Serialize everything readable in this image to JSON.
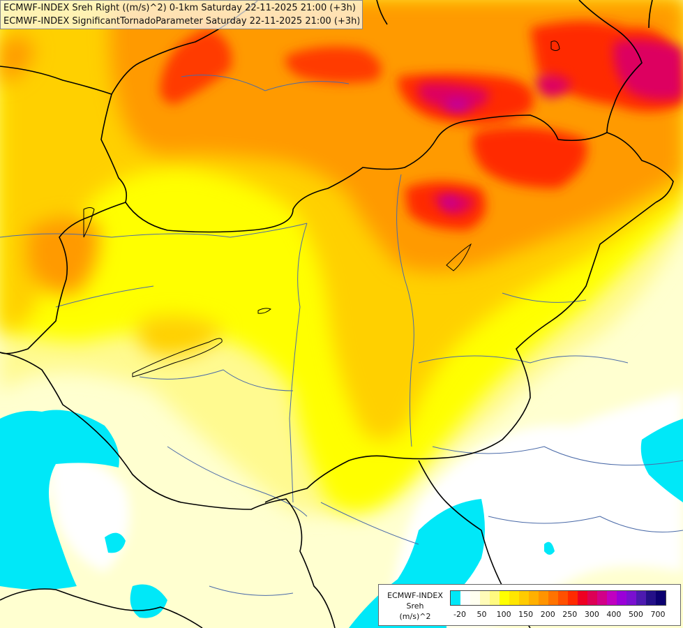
{
  "title": {
    "line1": "ECMWF-INDEX Sreh Right ((m/s)^2) 0-1km Saturday 22-11-2025 21:00 (+3h)",
    "line2": "ECMWF-INDEX SignificantTornadoParameter Saturday 22-11-2025 21:00 (+3h)"
  },
  "legend": {
    "line1": "ECMWF-INDEX",
    "line2": "Sreh",
    "line3": "(m/s)^2",
    "colors": [
      "#00e8f8",
      "#ffffff",
      "#fffff0",
      "#fffbb8",
      "#fffa80",
      "#ffff00",
      "#ffe600",
      "#ffcb00",
      "#ffb000",
      "#ff9400",
      "#ff7300",
      "#ff5000",
      "#ff2a00",
      "#ee0022",
      "#dd0055",
      "#d20088",
      "#c000c0",
      "#9a00d8",
      "#7a10d0",
      "#4d1ab0",
      "#241088",
      "#0b0070"
    ],
    "ticks": [
      "-20",
      "50",
      "100",
      "150",
      "200",
      "250",
      "300",
      "400",
      "500",
      "700"
    ]
  },
  "palette": {
    "cyan": "#00e8f8",
    "pale": "#ffffd0",
    "yellow": "#ffff00",
    "gold": "#ffd000",
    "orange": "#ff9a00",
    "red": "#ff2a00",
    "magenta": "#dd0060",
    "purple": "#c000a0",
    "border": "#000000",
    "river": "#4a6aa8"
  }
}
